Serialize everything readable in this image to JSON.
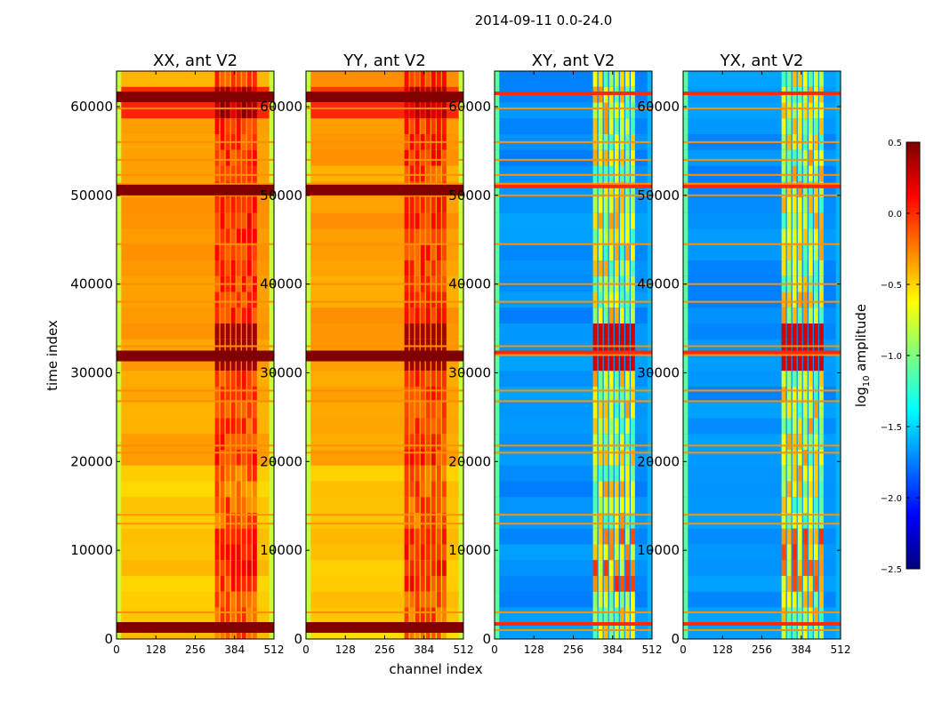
{
  "figure": {
    "suptitle": "2014-09-11 0.0-24.0"
  },
  "chart_data": {
    "type": "heatmap",
    "title": "2014-09-11 0.0-24.0",
    "xlabel": "channel index",
    "ylabel": "time index",
    "x_range": [
      0,
      512
    ],
    "y_range": [
      0,
      64000
    ],
    "x_ticks": [
      "0",
      "128",
      "256",
      "384",
      "512"
    ],
    "y_ticks": [
      "0",
      "10000",
      "20000",
      "30000",
      "40000",
      "50000",
      "60000"
    ],
    "colormap": "jet",
    "panels": [
      {
        "title": "XX, ant V2",
        "base_log_amp": -0.35,
        "type": "autocorr"
      },
      {
        "title": "YY, ant V2",
        "base_log_amp": -0.35,
        "type": "autocorr"
      },
      {
        "title": "XY, ant V2",
        "base_log_amp": -1.7,
        "type": "crosscorr"
      },
      {
        "title": "YX, ant V2",
        "base_log_amp": -1.7,
        "type": "crosscorr"
      }
    ],
    "colorbar": {
      "label_prefix": "log",
      "label_sub": "10",
      "label_suffix": " amplitude",
      "min": -2.5,
      "max": 0.5,
      "ticks": [
        "0.5",
        "0.0",
        "−0.5",
        "−1.0",
        "−1.5",
        "−2.0",
        "−2.5"
      ],
      "tick_values": [
        0.5,
        0.0,
        -0.5,
        -1.0,
        -1.5,
        -2.0,
        -2.5
      ]
    },
    "flagged_rows_time_index": [
      1000,
      3000,
      13000,
      14000,
      21000,
      21800,
      26800,
      28000,
      32000,
      33000,
      38000,
      40000,
      44500,
      50000,
      51300,
      52300,
      54000,
      56000,
      59800
    ],
    "dark_rows_time_index": [
      1200,
      31800,
      50500,
      61000
    ]
  }
}
